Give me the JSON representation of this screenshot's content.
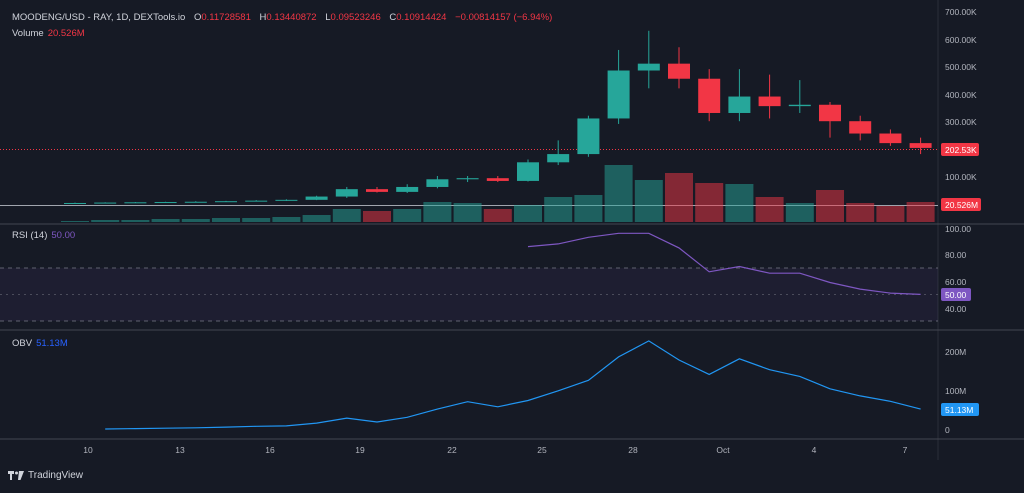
{
  "header": {
    "symbol": "MOODENG/USD - RAY, 1D, DEXTools.io",
    "o_label": "O",
    "o_value": "0.11728581",
    "h_label": "H",
    "h_value": "0.13440872",
    "l_label": "L",
    "l_value": "0.09523246",
    "c_label": "C",
    "c_value": "0.10914424",
    "change": "−0.00814157 (−6.94%)"
  },
  "volume_label": "Volume",
  "volume_value": "20.526M",
  "rsi_label": "RSI (14)",
  "rsi_value": "50.00",
  "obv_label": "OBV",
  "obv_value": "51.13M",
  "price_axis_labels": [
    "700.00K",
    "600.00K",
    "500.00K",
    "400.00K",
    "300.00K",
    "100.00K"
  ],
  "price_badge": "202.53K",
  "volume_badge": "20.526M",
  "rsi_axis_labels": [
    "100.00",
    "80.00",
    "60.00",
    "40.00"
  ],
  "rsi_badge": "50.00",
  "obv_axis_labels": [
    "200M",
    "100M",
    "0"
  ],
  "obv_badge": "51.13M",
  "x_axis_labels": [
    "10",
    "13",
    "16",
    "19",
    "22",
    "25",
    "28",
    "Oct",
    "4",
    "7"
  ],
  "brand": "TradingView",
  "colors": {
    "up": "#26a69a",
    "down": "#f23645",
    "rsi": "#7e57c2",
    "obv": "#2196f3",
    "background": "#161a25"
  },
  "chart_data": [
    {
      "type": "candlestick",
      "title": "MOODENG/USD - RAY, 1D, DEXTools.io",
      "ylim": [
        0,
        720000
      ],
      "candles": [
        {
          "x": "Sep 9",
          "o": 1000,
          "h": 3000,
          "l": 800,
          "c": 1500
        },
        {
          "x": "Sep 10",
          "o": 1500,
          "h": 4000,
          "l": 1200,
          "c": 3000
        },
        {
          "x": "Sep 11",
          "o": 3000,
          "h": 5000,
          "l": 2500,
          "c": 4000
        },
        {
          "x": "Sep 12",
          "o": 4000,
          "h": 6000,
          "l": 3500,
          "c": 5000
        },
        {
          "x": "Sep 13",
          "o": 5000,
          "h": 8000,
          "l": 4500,
          "c": 6000
        },
        {
          "x": "Sep 14",
          "o": 6000,
          "h": 9000,
          "l": 5500,
          "c": 8000
        },
        {
          "x": "Sep 15",
          "o": 8000,
          "h": 12000,
          "l": 7000,
          "c": 10000
        },
        {
          "x": "Sep 16",
          "o": 10000,
          "h": 15000,
          "l": 9000,
          "c": 13000
        },
        {
          "x": "Sep 17",
          "o": 13000,
          "h": 28000,
          "l": 12000,
          "c": 25000
        },
        {
          "x": "Sep 18",
          "o": 25000,
          "h": 60000,
          "l": 20000,
          "c": 52000
        },
        {
          "x": "Sep 19",
          "o": 52000,
          "h": 60000,
          "l": 40000,
          "c": 42000
        },
        {
          "x": "Sep 20",
          "o": 42000,
          "h": 70000,
          "l": 38000,
          "c": 60000
        },
        {
          "x": "Sep 21",
          "o": 60000,
          "h": 100000,
          "l": 55000,
          "c": 88000
        },
        {
          "x": "Sep 22",
          "o": 88000,
          "h": 100000,
          "l": 78000,
          "c": 92000
        },
        {
          "x": "Sep 23",
          "o": 92000,
          "h": 100000,
          "l": 78000,
          "c": 82000
        },
        {
          "x": "Sep 24",
          "o": 82000,
          "h": 160000,
          "l": 80000,
          "c": 150000
        },
        {
          "x": "Sep 25",
          "o": 150000,
          "h": 230000,
          "l": 140000,
          "c": 180000
        },
        {
          "x": "Sep 26",
          "o": 180000,
          "h": 320000,
          "l": 170000,
          "c": 310000
        },
        {
          "x": "Sep 27",
          "o": 310000,
          "h": 560000,
          "l": 290000,
          "c": 485000
        },
        {
          "x": "Sep 28",
          "o": 485000,
          "h": 630000,
          "l": 420000,
          "c": 510000
        },
        {
          "x": "Sep 29",
          "o": 510000,
          "h": 570000,
          "l": 420000,
          "c": 455000
        },
        {
          "x": "Sep 30",
          "o": 455000,
          "h": 490000,
          "l": 300000,
          "c": 330000
        },
        {
          "x": "Oct 1",
          "o": 330000,
          "h": 490000,
          "l": 300000,
          "c": 390000
        },
        {
          "x": "Oct 2",
          "o": 390000,
          "h": 470000,
          "l": 310000,
          "c": 355000
        },
        {
          "x": "Oct 3",
          "o": 355000,
          "h": 450000,
          "l": 330000,
          "c": 360000
        },
        {
          "x": "Oct 4",
          "o": 360000,
          "h": 370000,
          "l": 240000,
          "c": 300000
        },
        {
          "x": "Oct 5",
          "o": 300000,
          "h": 320000,
          "l": 230000,
          "c": 255000
        },
        {
          "x": "Oct 6",
          "o": 255000,
          "h": 270000,
          "l": 210000,
          "c": 220000
        },
        {
          "x": "Oct 7",
          "o": 220000,
          "h": 240000,
          "l": 180000,
          "c": 202530
        }
      ],
      "volume": [
        0.5,
        1,
        1,
        1.5,
        1.5,
        2,
        2,
        2.5,
        3.5,
        6.5,
        5.5,
        6.5,
        10,
        9.5,
        6.5,
        8.5,
        12.5,
        13.5,
        28.5,
        21,
        24.5,
        19.5,
        19,
        12.5,
        9.5,
        16,
        9.5,
        8,
        10
      ]
    },
    {
      "type": "line",
      "title": "RSI (14)",
      "ylim": [
        20,
        100
      ],
      "x": [
        "Sep 24",
        "Sep 25",
        "Sep 26",
        "Sep 27",
        "Sep 28",
        "Sep 29",
        "Sep 30",
        "Oct 1",
        "Oct 2",
        "Oct 3",
        "Oct 4",
        "Oct 5",
        "Oct 6",
        "Oct 7"
      ],
      "values": [
        86,
        88,
        93,
        96,
        96,
        85,
        67,
        71,
        66,
        66,
        59,
        54,
        51,
        50
      ]
    },
    {
      "type": "line",
      "title": "OBV",
      "ylim": [
        0,
        240
      ],
      "unit": "M",
      "x": [
        "Sep 10",
        "Sep 11",
        "Sep 12",
        "Sep 13",
        "Sep 14",
        "Sep 15",
        "Sep 16",
        "Sep 17",
        "Sep 18",
        "Sep 19",
        "Sep 20",
        "Sep 21",
        "Sep 22",
        "Sep 23",
        "Sep 24",
        "Sep 25",
        "Sep 26",
        "Sep 27",
        "Sep 28",
        "Sep 29",
        "Sep 30",
        "Oct 1",
        "Oct 2",
        "Oct 3",
        "Oct 4",
        "Oct 5",
        "Oct 6",
        "Oct 7"
      ],
      "values": [
        0,
        1,
        2,
        3,
        5,
        7,
        8,
        15,
        28,
        18,
        30,
        51,
        70,
        57,
        73,
        98,
        125,
        185,
        226,
        177,
        140,
        180,
        152,
        135,
        103,
        85,
        71,
        51.13
      ]
    }
  ]
}
